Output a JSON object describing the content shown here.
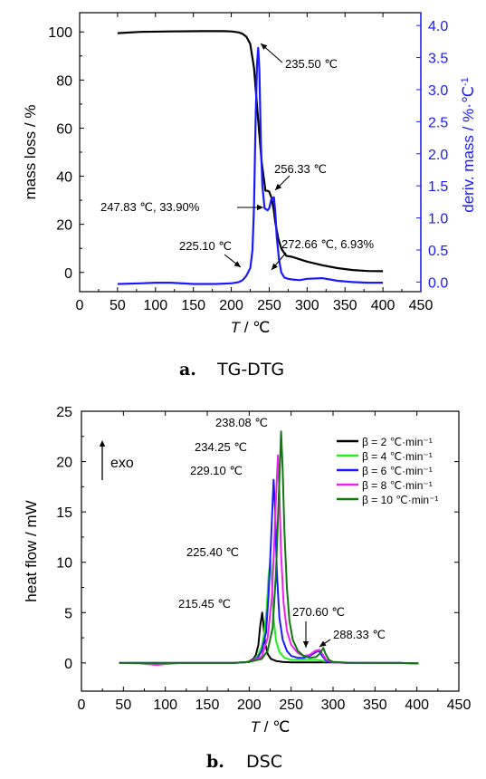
{
  "captions": {
    "a_tag": "a.",
    "a_text": "TG-DTG",
    "b_tag": "b.",
    "b_text": "DSC"
  },
  "chart_data": [
    {
      "type": "line",
      "title": "",
      "xlabel_italic": "T",
      "xlabel_unit": " / ℃",
      "ylabel": "mass loss / %",
      "ylabel_right": "deriv. mass / %·℃",
      "ylabel_right_sup": "-1",
      "xlim": [
        0,
        450
      ],
      "ylim": [
        -8,
        108
      ],
      "ylim_right": [
        -0.15,
        4.2
      ],
      "xticks": [
        "0",
        "50",
        "100",
        "150",
        "200",
        "250",
        "300",
        "350",
        "400",
        "450"
      ],
      "yticks": [
        "0",
        "20",
        "40",
        "60",
        "80",
        "100"
      ],
      "yticks_right": [
        "0.0",
        "0.5",
        "1.0",
        "1.5",
        "2.0",
        "2.5",
        "3.0",
        "3.5",
        "4.0"
      ],
      "grid": false,
      "series": [
        {
          "axis": "left",
          "color": "#000000",
          "x": [
            50,
            80,
            120,
            160,
            190,
            200,
            210,
            215,
            220,
            225,
            230,
            235,
            240,
            245,
            248,
            250,
            253,
            256,
            258,
            262,
            266,
            270,
            272.66,
            280,
            290,
            300,
            320,
            340,
            360,
            380,
            400
          ],
          "y": [
            99.5,
            100,
            100.2,
            100.3,
            100.3,
            100.2,
            99.8,
            99.2,
            98,
            95,
            85,
            65,
            46,
            34,
            33.9,
            33.6,
            31,
            26,
            21,
            14,
            10,
            8,
            6.93,
            6.5,
            5.5,
            4.5,
            3,
            1.8,
            1,
            0.6,
            0.5
          ]
        },
        {
          "axis": "right",
          "color": "#1a1aff",
          "x": [
            50,
            80,
            100,
            120,
            150,
            180,
            200,
            210,
            215,
            220,
            225.1,
            228,
            230,
            232,
            234,
            235.5,
            237,
            239,
            241,
            244,
            247.83,
            250,
            253,
            256.33,
            258,
            260,
            263,
            266,
            270,
            275,
            280,
            290,
            300,
            320,
            330,
            340,
            360,
            380,
            400
          ],
          "y": [
            -0.03,
            -0.02,
            -0.01,
            -0.01,
            -0.03,
            -0.03,
            -0.02,
            0.0,
            0.03,
            0.1,
            0.22,
            0.5,
            1.2,
            2.5,
            3.4,
            3.65,
            3.3,
            2.2,
            1.5,
            1.15,
            1.12,
            1.15,
            1.3,
            1.32,
            1.1,
            0.7,
            0.35,
            0.15,
            0.07,
            0.05,
            0.04,
            0.03,
            0.05,
            0.06,
            0.04,
            0.02,
            0.0,
            -0.01,
            -0.01
          ]
        }
      ],
      "annotations": [
        "235.50 ℃",
        "256.33 ℃",
        "247.83 ℃, 33.90%",
        "225.10 ℃",
        "272.66 ℃, 6.93%"
      ]
    },
    {
      "type": "line",
      "title": "",
      "xlabel_italic": "T",
      "xlabel_unit": " / ℃",
      "ylabel": "heat flow / mW",
      "exo_label": "exo",
      "xlim": [
        0,
        450
      ],
      "ylim": [
        -2.8,
        25
      ],
      "xticks": [
        "0",
        "50",
        "100",
        "150",
        "200",
        "250",
        "300",
        "350",
        "400",
        "450"
      ],
      "yticks": [
        "0",
        "5",
        "10",
        "15",
        "20",
        "25"
      ],
      "grid": false,
      "legend_position": "top-right",
      "series": [
        {
          "name": "β = 2 ℃·min⁻¹",
          "color": "#000000",
          "x": [
            45,
            100,
            150,
            180,
            195,
            200,
            205,
            208,
            211,
            213,
            215.45,
            217,
            219,
            222,
            226,
            232,
            240,
            250,
            260,
            270,
            280,
            290,
            300,
            320,
            350,
            380,
            402
          ],
          "y": [
            0,
            0,
            0,
            0,
            0.05,
            0.15,
            0.4,
            0.8,
            1.8,
            3.6,
            5.0,
            3.8,
            2.0,
            0.9,
            0.4,
            0.2,
            0.1,
            0.05,
            0.05,
            0.05,
            0.05,
            0.05,
            0.05,
            0.02,
            0,
            0,
            -0.05
          ]
        },
        {
          "name": "β = 4 ℃·min⁻¹",
          "color": "#22ee22",
          "x": [
            45,
            100,
            150,
            180,
            195,
            200,
            205,
            210,
            215,
            218,
            221,
            223,
            225.4,
            227,
            229,
            232,
            236,
            242,
            250,
            260,
            270,
            280,
            290,
            300,
            320,
            350,
            380,
            402
          ],
          "y": [
            0,
            0,
            0,
            0,
            0.05,
            0.1,
            0.3,
            0.7,
            1.6,
            3.0,
            5.5,
            8.5,
            10.3,
            8.0,
            4.5,
            2.2,
            1.1,
            0.5,
            0.3,
            0.3,
            0.3,
            0.3,
            0.2,
            0.1,
            0.02,
            0,
            0,
            -0.05
          ]
        },
        {
          "name": "β = 6 ℃·min⁻¹",
          "color": "#1a1aff",
          "x": [
            45,
            100,
            150,
            180,
            200,
            210,
            215,
            220,
            223,
            226,
            229.1,
            231,
            233,
            236,
            240,
            245,
            250,
            258,
            265,
            272,
            280,
            283,
            287,
            292,
            300,
            320,
            350,
            380,
            402
          ],
          "y": [
            0,
            0,
            0,
            0,
            0.1,
            0.5,
            1.2,
            3.0,
            6.5,
            12,
            18.2,
            15,
            9,
            4.5,
            2.3,
            1.2,
            0.7,
            0.5,
            0.5,
            0.7,
            1.1,
            1.2,
            0.7,
            0.2,
            0.05,
            0,
            0,
            0,
            -0.05
          ]
        },
        {
          "name": "β = 8 ℃·min⁻¹",
          "color": "#ee22ee",
          "x": [
            45,
            70,
            90,
            100,
            120,
            150,
            180,
            200,
            215,
            222,
            227,
            230,
            232,
            234.25,
            236,
            238,
            241,
            245,
            250,
            258,
            265,
            272,
            279,
            284,
            288,
            292,
            300,
            320,
            350,
            380,
            402
          ],
          "y": [
            0,
            -0.05,
            -0.2,
            -0.1,
            0,
            0,
            0,
            0.1,
            0.6,
            2.5,
            6.5,
            12,
            16.5,
            20.6,
            17,
            11,
            6,
            3.2,
            1.8,
            1.0,
            0.7,
            0.8,
            1.2,
            1.3,
            0.8,
            0.3,
            0.05,
            0,
            0,
            0,
            -0.05
          ]
        },
        {
          "name": "β = 10 ℃·min⁻¹",
          "color": "#117711",
          "x": [
            45,
            100,
            150,
            180,
            200,
            215,
            222,
            228,
            232,
            235,
            238.08,
            240,
            242,
            245,
            248,
            252,
            258,
            265,
            272,
            280,
            285,
            288.33,
            291,
            295,
            300,
            320,
            350,
            380,
            402
          ],
          "y": [
            0,
            0,
            0,
            0,
            0.1,
            0.4,
            1.2,
            3.5,
            9,
            16,
            23,
            19,
            13,
            7.5,
            4.2,
            2.3,
            1.2,
            0.7,
            0.5,
            0.6,
            1.0,
            1.5,
            0.9,
            0.3,
            0.1,
            0.02,
            0,
            0,
            -0.05
          ]
        }
      ],
      "annotations": [
        "238.08 ℃",
        "234.25 ℃",
        "229.10 ℃",
        "225.40 ℃",
        "215.45 ℃",
        "270.60 ℃",
        "288.33 ℃"
      ]
    }
  ]
}
